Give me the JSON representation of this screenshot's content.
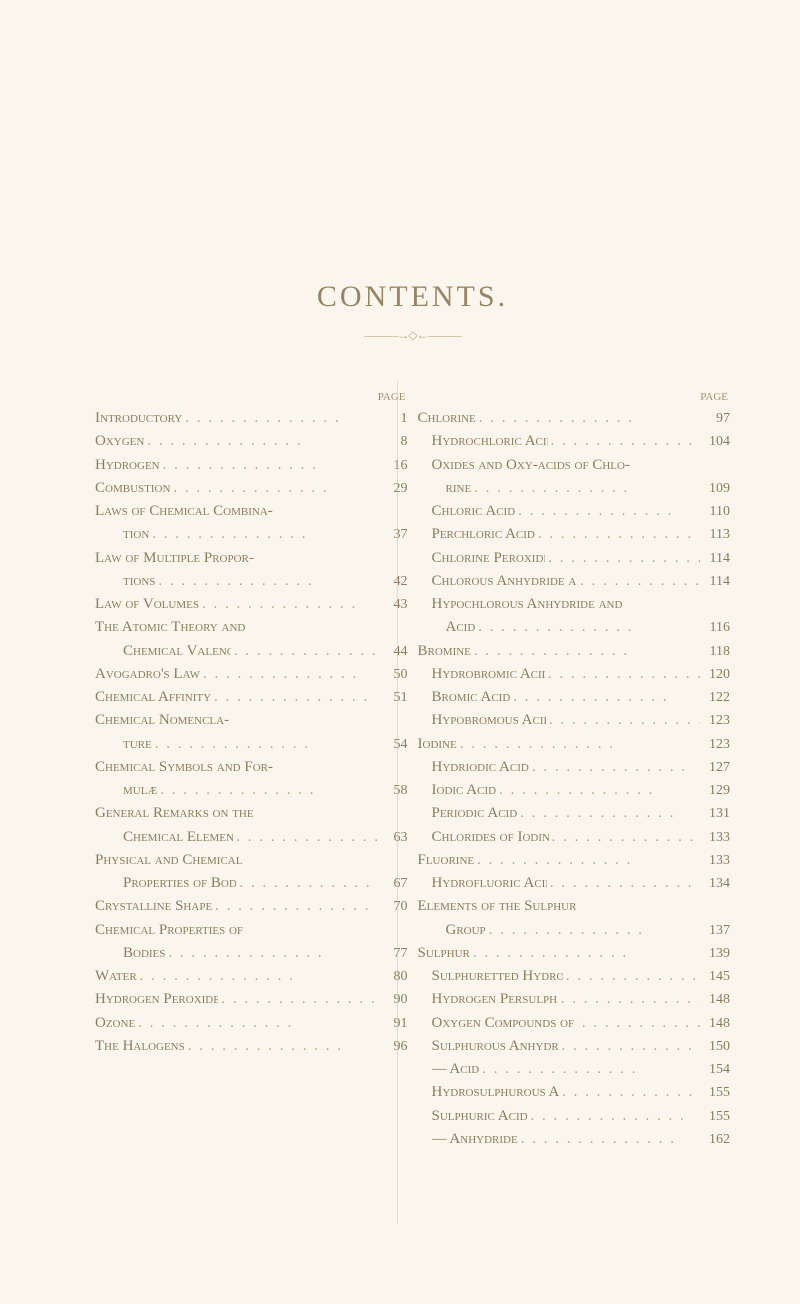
{
  "title": "CONTENTS.",
  "divider": "———→◇←———",
  "page_label": "PAGE",
  "left": [
    {
      "label": "Introductory",
      "page": "1",
      "indent": 0
    },
    {
      "label": "Oxygen",
      "page": "8",
      "indent": 0
    },
    {
      "label": "Hydrogen",
      "page": "16",
      "indent": 0
    },
    {
      "label": "Combustion",
      "page": "29",
      "indent": 0
    },
    {
      "label": "Laws of Chemical Combina-",
      "page": "",
      "indent": 0,
      "noleaders": true
    },
    {
      "label": "tion",
      "page": "37",
      "indent": 0,
      "cont": true
    },
    {
      "label": "Law of Multiple Propor-",
      "page": "",
      "indent": 0,
      "noleaders": true
    },
    {
      "label": "tions",
      "page": "42",
      "indent": 0,
      "cont": true
    },
    {
      "label": "Law of Volumes",
      "page": "43",
      "indent": 0
    },
    {
      "label": "The Atomic Theory and",
      "page": "",
      "indent": 0,
      "noleaders": true
    },
    {
      "label": "Chemical Valency",
      "page": "44",
      "indent": 0,
      "cont": true
    },
    {
      "label": "Avogadro's Law",
      "page": "50",
      "indent": 0
    },
    {
      "label": "Chemical Affinity",
      "page": "51",
      "indent": 0
    },
    {
      "label": "Chemical     Nomencla-",
      "page": "",
      "indent": 0,
      "noleaders": true
    },
    {
      "label": "ture",
      "page": "54",
      "indent": 0,
      "cont": true
    },
    {
      "label": "Chemical Symbols and For-",
      "page": "",
      "indent": 0,
      "noleaders": true
    },
    {
      "label": "mulæ",
      "page": "58",
      "indent": 0,
      "cont": true
    },
    {
      "label": "General Remarks on the",
      "page": "",
      "indent": 0,
      "noleaders": true
    },
    {
      "label": "Chemical Elements",
      "page": "63",
      "indent": 0,
      "cont": true
    },
    {
      "label": "Physical   and   Chemical",
      "page": "",
      "indent": 0,
      "noleaders": true
    },
    {
      "label": "Properties of Bodies",
      "page": "67",
      "indent": 0,
      "cont": true
    },
    {
      "label": "Crystalline Shape",
      "page": "70",
      "indent": 0
    },
    {
      "label": "Chemical   Properties   of",
      "page": "",
      "indent": 0,
      "noleaders": true
    },
    {
      "label": "Bodies",
      "page": "77",
      "indent": 0,
      "cont": true
    },
    {
      "label": "Water",
      "page": "80",
      "indent": 0
    },
    {
      "label": "Hydrogen Peroxide",
      "page": "90",
      "indent": 0
    },
    {
      "label": "Ozone",
      "page": "91",
      "indent": 0
    },
    {
      "label": "The Halogens",
      "page": "96",
      "indent": 0
    }
  ],
  "right": [
    {
      "label": "Chlorine",
      "page": "97",
      "indent": 0
    },
    {
      "label": "Hydrochloric Acid",
      "page": "104",
      "indent": 1
    },
    {
      "label": "Oxides and Oxy-acids of Chlo-",
      "page": "",
      "indent": 1,
      "noleaders": true
    },
    {
      "label": "rine",
      "page": "109",
      "indent": 1,
      "cont": true
    },
    {
      "label": "Chloric Acid",
      "page": "110",
      "indent": 1
    },
    {
      "label": "Perchloric Acid",
      "page": "113",
      "indent": 1
    },
    {
      "label": "Chlorine Peroxide",
      "page": "114",
      "indent": 1
    },
    {
      "label": "Chlorous Anhydride and Acid",
      "page": "114",
      "indent": 1
    },
    {
      "label": "Hypochlorous Anhydride and",
      "page": "",
      "indent": 1,
      "noleaders": true
    },
    {
      "label": "Acid",
      "page": "116",
      "indent": 1,
      "cont": true
    },
    {
      "label": "Bromine",
      "page": "118",
      "indent": 0
    },
    {
      "label": "Hydrobromic Acid",
      "page": "120",
      "indent": 1
    },
    {
      "label": "Bromic Acid",
      "page": "122",
      "indent": 1
    },
    {
      "label": "Hypobromous Acid",
      "page": "123",
      "indent": 1
    },
    {
      "label": "Iodine",
      "page": "123",
      "indent": 0
    },
    {
      "label": "Hydriodic Acid",
      "page": "127",
      "indent": 1
    },
    {
      "label": "Iodic Acid",
      "page": "129",
      "indent": 1
    },
    {
      "label": "Periodic Acid",
      "page": "131",
      "indent": 1
    },
    {
      "label": "Chlorides of Iodine",
      "page": "133",
      "indent": 1
    },
    {
      "label": "Fluorine",
      "page": "133",
      "indent": 0
    },
    {
      "label": "Hydrofluoric Acid",
      "page": "134",
      "indent": 1
    },
    {
      "label": "Elements of the Sulphur",
      "page": "",
      "indent": 0,
      "noleaders": true
    },
    {
      "label": "Group",
      "page": "137",
      "indent": 0,
      "cont": true
    },
    {
      "label": "Sulphur",
      "page": "139",
      "indent": 0
    },
    {
      "label": "Sulphuretted Hydrogen",
      "page": "145",
      "indent": 1
    },
    {
      "label": "Hydrogen Persulphide",
      "page": "148",
      "indent": 1
    },
    {
      "label": "Oxygen Compounds of Sulphur",
      "page": "148",
      "indent": 1
    },
    {
      "label": "Sulphurous Anhydride",
      "page": "150",
      "indent": 1
    },
    {
      "label": "— Acid",
      "page": "154",
      "indent": 1
    },
    {
      "label": "Hydrosulphurous Acid",
      "page": "155",
      "indent": 1
    },
    {
      "label": "Sulphuric Acid",
      "page": "155",
      "indent": 1
    },
    {
      "label": "— Anhydride",
      "page": "162",
      "indent": 1
    }
  ]
}
